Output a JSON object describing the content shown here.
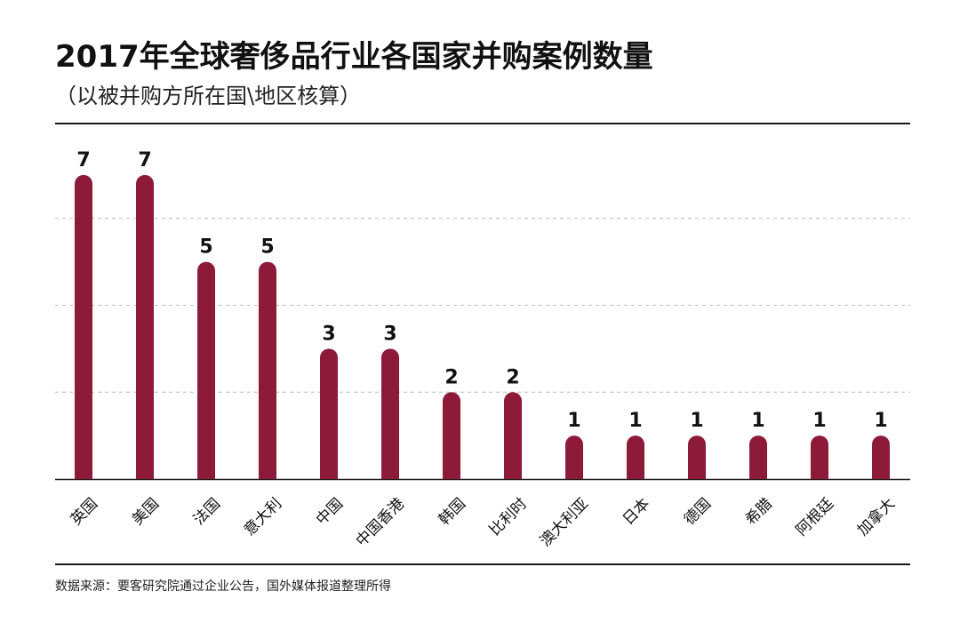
{
  "title": "2017年全球奢侈品行业各国家并购案例数量",
  "subtitle": "（以被并购方所在国\\地区核算）",
  "source": "数据来源：要客研究院通过企业公告，国外媒体报道整理所得",
  "colors": {
    "bar": "#8e1a3a",
    "grid": "#bbbbbb",
    "axis": "#1a1a1a",
    "text": "#111111"
  },
  "chart_data": {
    "type": "bar",
    "categories": [
      "英国",
      "美国",
      "法国",
      "意大利",
      "中国",
      "中国香港",
      "韩国",
      "比利时",
      "澳大利亚",
      "日本",
      "德国",
      "希腊",
      "阿根廷",
      "加拿大"
    ],
    "values": [
      7,
      7,
      5,
      5,
      3,
      3,
      2,
      2,
      1,
      1,
      1,
      1,
      1,
      1
    ],
    "data_labels": [
      "7",
      "7",
      "5",
      "5",
      "3",
      "3",
      "2",
      "2",
      "1",
      "1",
      "1",
      "1",
      "1",
      "1"
    ],
    "ylim": [
      0,
      8
    ],
    "grid": true,
    "legend": "none",
    "xlabel": "",
    "ylabel": ""
  }
}
